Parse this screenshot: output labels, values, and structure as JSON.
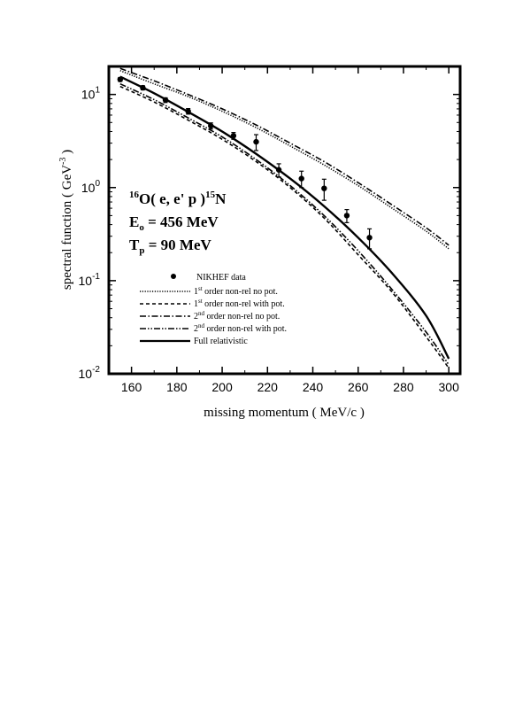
{
  "chart_data": {
    "type": "line",
    "xlabel": "missing momentum ( MeV/c )",
    "ylabel": "spectral function  ( GeV",
    "ylabel_sup": "-3",
    "ylabel_end": " )",
    "x_ticks": [
      160,
      180,
      200,
      220,
      240,
      260,
      280,
      300
    ],
    "y_ticks": [
      {
        "value": 10,
        "base": "10",
        "exp": "1"
      },
      {
        "value": 1,
        "base": "10",
        "exp": "0"
      },
      {
        "value": 0.1,
        "base": "10",
        "exp": "-1"
      },
      {
        "value": 0.01,
        "base": "10",
        "exp": "-2"
      }
    ],
    "xlim": [
      150,
      305
    ],
    "ylim": [
      0.01,
      20
    ],
    "y_scale": "log",
    "grid": false,
    "legend_position": "center-left",
    "annotations": {
      "reaction": {
        "pre_sup": "16",
        "main": "O( e, e' p )",
        "post_sup": "15",
        "end": "N"
      },
      "energy": {
        "label": "E",
        "sub": "o",
        "value": " = 456 MeV"
      },
      "kinetic": {
        "label": "T",
        "sub": "p",
        "value": " = 90 MeV"
      }
    },
    "data_points": {
      "name": "NIKHEF data",
      "x": [
        155,
        165,
        175,
        185,
        195,
        205,
        215,
        225,
        235,
        245,
        255,
        265
      ],
      "y": [
        14.5,
        11.8,
        8.7,
        6.6,
        4.6,
        3.6,
        3.1,
        1.55,
        1.25,
        0.98,
        0.5,
        0.29
      ],
      "err": [
        0.7,
        0.6,
        0.5,
        0.45,
        0.35,
        0.3,
        0.6,
        0.25,
        0.25,
        0.25,
        0.08,
        0.07
      ]
    },
    "series": [
      {
        "name": "1st order non-rel no pot.",
        "sup": "st",
        "prefix": "1",
        "text": " order non-rel no pot.",
        "dash": "1.2 1.6",
        "x": [
          155,
          170,
          185,
          200,
          215,
          230,
          245,
          260,
          275,
          290,
          300
        ],
        "y": [
          18,
          13,
          9.5,
          6.6,
          4.4,
          2.8,
          1.75,
          1.05,
          0.6,
          0.34,
          0.22
        ]
      },
      {
        "name": "1st order non-rel with pot.",
        "sup": "st",
        "prefix": "1",
        "text": " order non-rel with pot.",
        "dash": "4 3",
        "x": [
          155,
          170,
          185,
          200,
          215,
          230,
          245,
          260,
          275,
          290,
          300
        ],
        "y": [
          12.2,
          8.3,
          5.3,
          3.3,
          1.9,
          1.0,
          0.47,
          0.19,
          0.075,
          0.025,
          0.0115
        ]
      },
      {
        "name": "2nd order non-rel no pot.",
        "sup": "nd",
        "prefix": "2",
        "text": " order non-rel no pot.",
        "dash": "7 2.5 1.5 2.5",
        "x": [
          155,
          170,
          185,
          200,
          215,
          230,
          245,
          260,
          275,
          290,
          300
        ],
        "y": [
          19,
          14,
          10,
          7,
          4.7,
          3.0,
          1.9,
          1.13,
          0.65,
          0.37,
          0.24
        ]
      },
      {
        "name": "2nd order non-rel with pot.",
        "sup": "nd",
        "prefix": "2",
        "text": " order non-rel with pot.",
        "dash": "7 2 1.5 2 1.5 2",
        "x": [
          155,
          170,
          185,
          200,
          215,
          230,
          245,
          260,
          275,
          290,
          300
        ],
        "y": [
          13,
          8.8,
          5.6,
          3.5,
          2.0,
          1.05,
          0.5,
          0.21,
          0.08,
          0.028,
          0.0125
        ]
      },
      {
        "name": "Full relativistic",
        "sup": "",
        "prefix": "",
        "text": "Full relativistic",
        "dash": "",
        "x": [
          155,
          170,
          185,
          200,
          215,
          230,
          245,
          260,
          275,
          290,
          300
        ],
        "y": [
          15.5,
          10.3,
          6.5,
          4.0,
          2.3,
          1.25,
          0.63,
          0.29,
          0.12,
          0.042,
          0.0145
        ]
      }
    ],
    "colors": {
      "ink": "#000000",
      "background": "#ffffff"
    }
  }
}
